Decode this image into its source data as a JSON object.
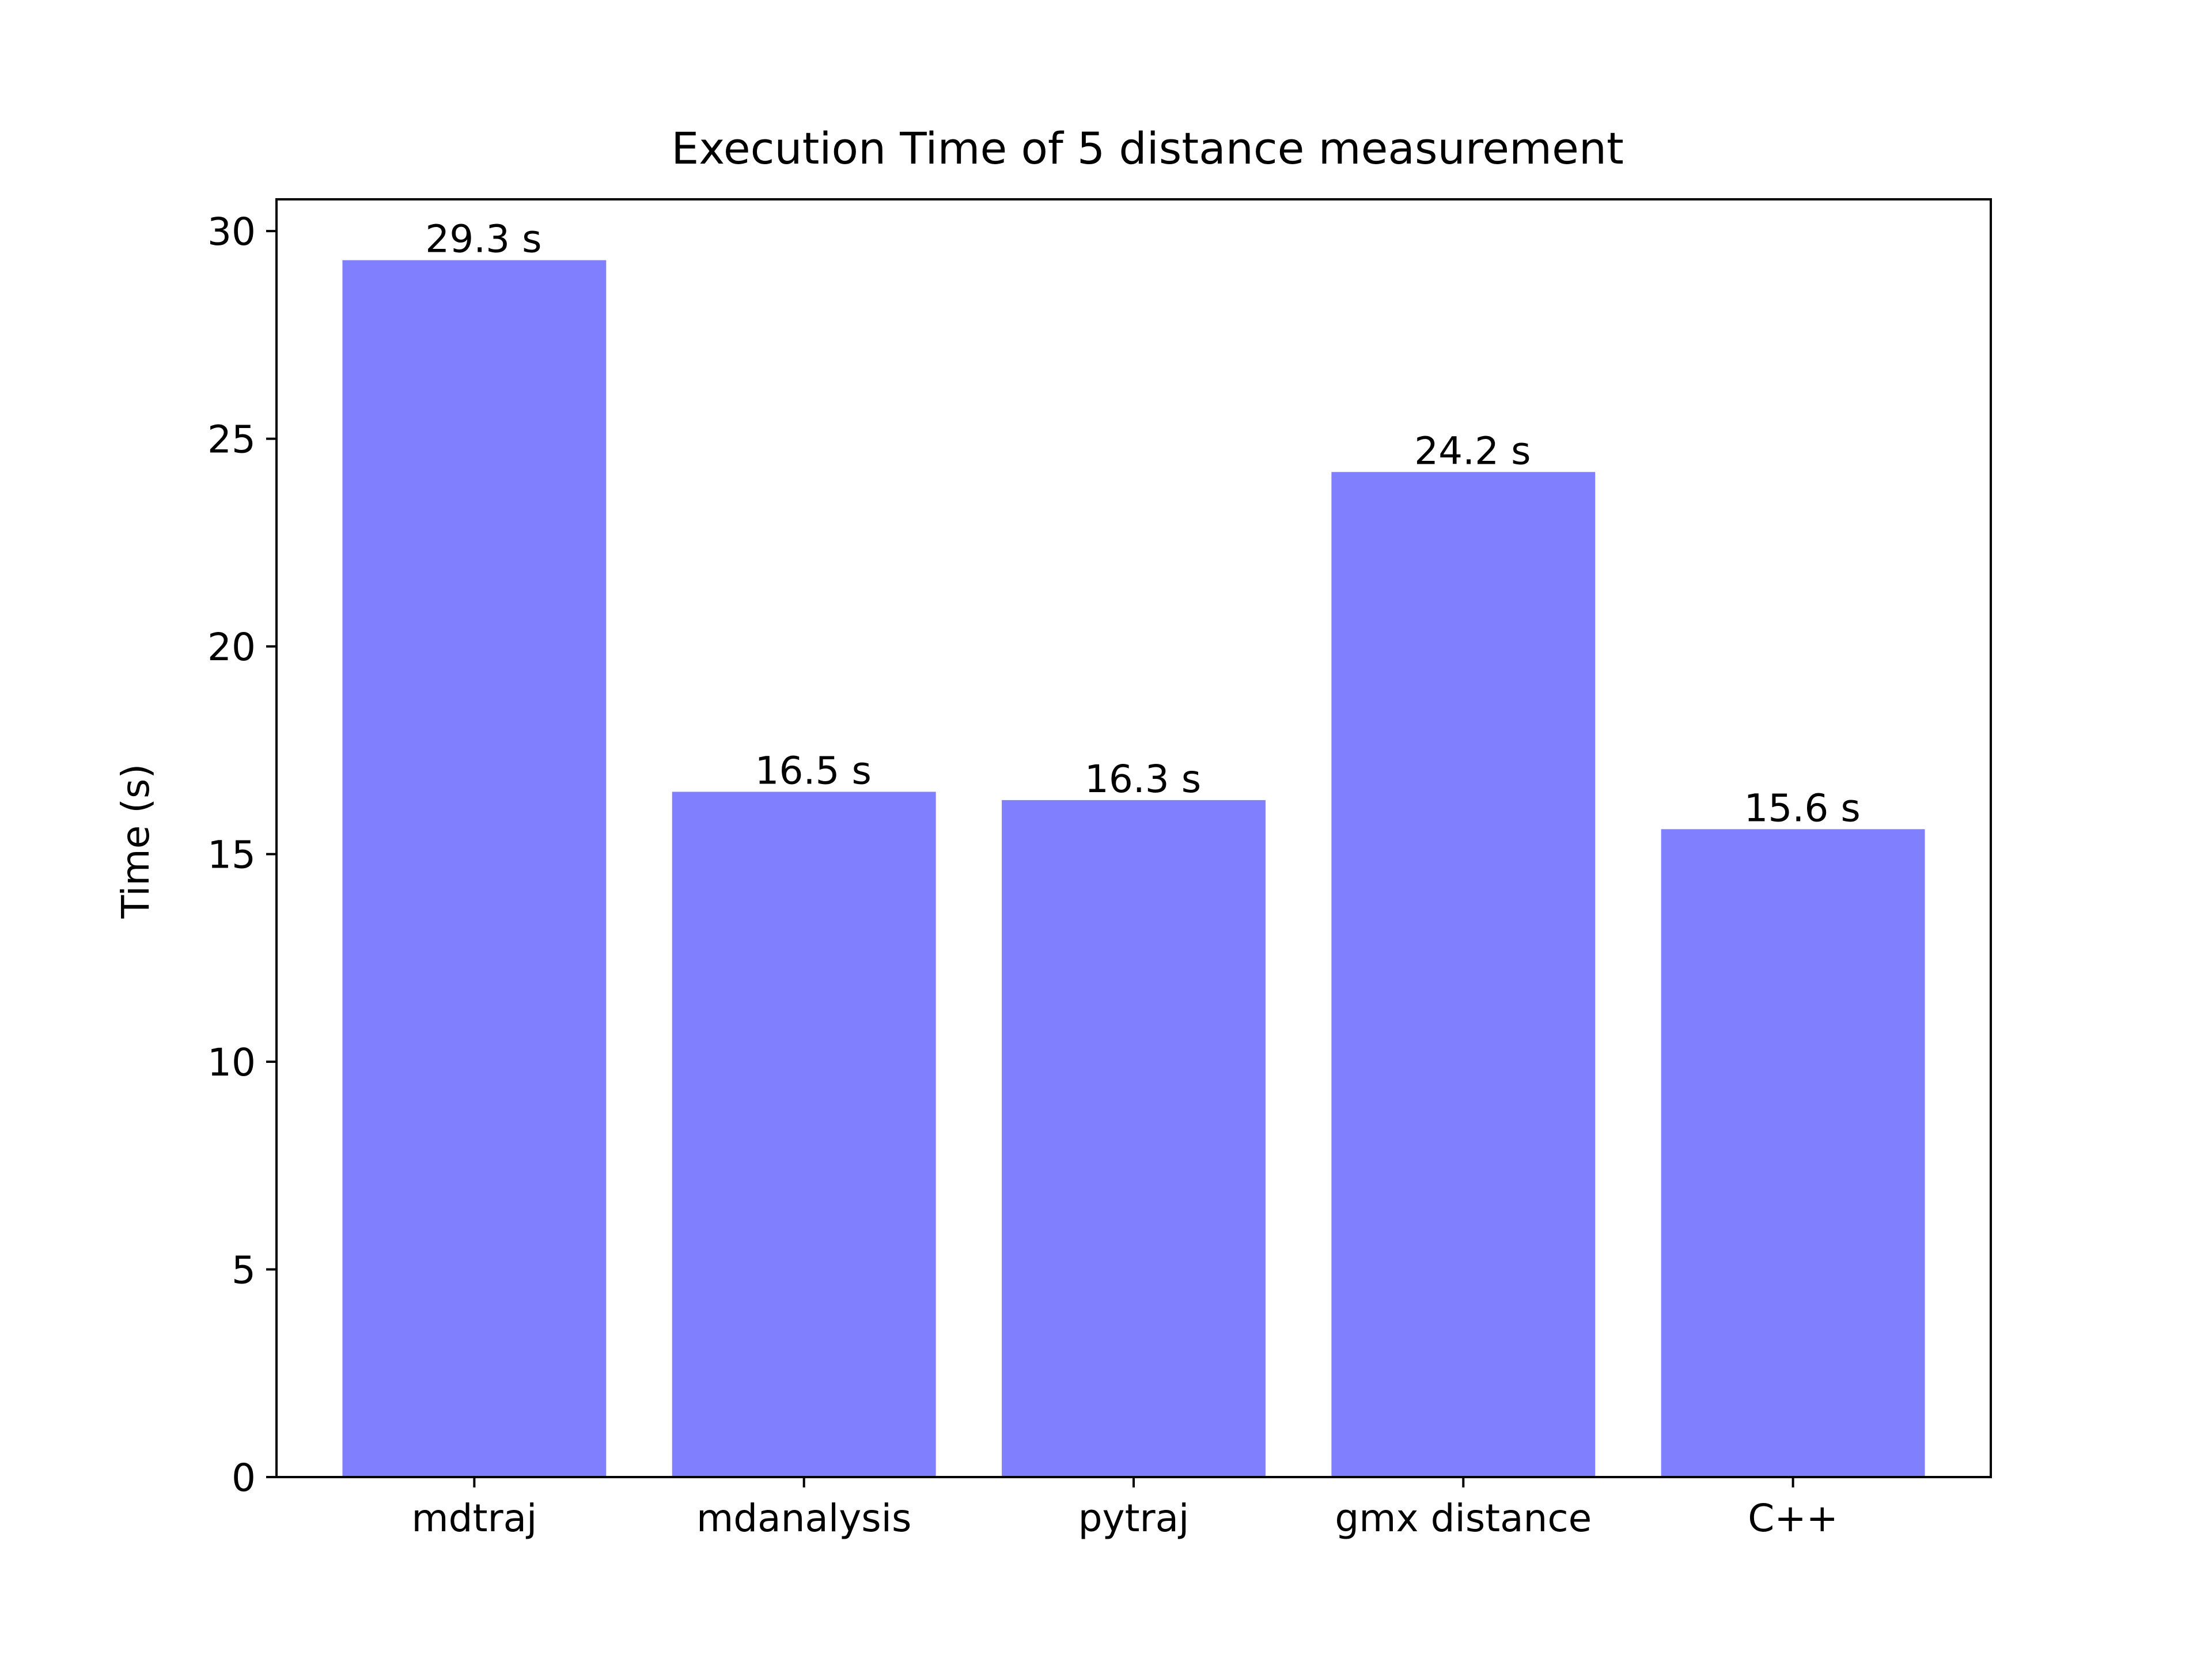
{
  "chart_data": {
    "type": "bar",
    "title": "Execution Time of 5 distance measurement",
    "xlabel": "",
    "ylabel": "Time (s)",
    "categories": [
      "mdtraj",
      "mdanalysis",
      "pytraj",
      "gmx distance",
      "C++"
    ],
    "values": [
      29.3,
      16.5,
      16.3,
      24.2,
      15.6
    ],
    "value_labels": [
      "29.3 s",
      "16.5 s",
      "16.3 s",
      "24.2 s",
      "15.6 s"
    ],
    "ylim": [
      0,
      30.765
    ],
    "yticks": [
      0,
      5,
      10,
      15,
      20,
      25,
      30
    ],
    "ytick_labels": [
      "0",
      "5",
      "10",
      "15",
      "20",
      "25",
      "30"
    ],
    "grid": false,
    "legend": "none",
    "bar_color": "#8080ff"
  }
}
